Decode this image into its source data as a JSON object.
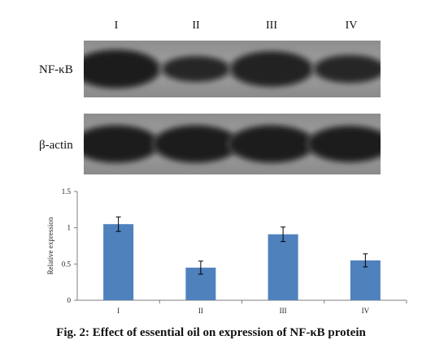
{
  "lanes": [
    "I",
    "II",
    "III",
    "IV"
  ],
  "blots": [
    {
      "label": "NF-κB",
      "band_intensity": [
        1.05,
        0.45,
        0.9,
        0.55
      ]
    },
    {
      "label": "β-actin",
      "band_intensity": [
        1.0,
        1.0,
        1.0,
        0.95
      ]
    }
  ],
  "chart_data": {
    "type": "bar",
    "categories": [
      "I",
      "II",
      "III",
      "IV"
    ],
    "values": [
      1.05,
      0.45,
      0.91,
      0.55
    ],
    "error": [
      0.1,
      0.09,
      0.1,
      0.09
    ],
    "ylabel": "Relative expression",
    "xlabel": "",
    "ylim": [
      0,
      1.5
    ],
    "yticks": [
      0,
      0.5,
      1,
      1.5
    ],
    "ytick_labels": [
      "0",
      "0.5",
      "1",
      "1.5"
    ],
    "grid": false,
    "bar_color": "#4f81bd"
  },
  "caption": "Fig. 2: Effect of essential oil on expression of NF-κB protein"
}
